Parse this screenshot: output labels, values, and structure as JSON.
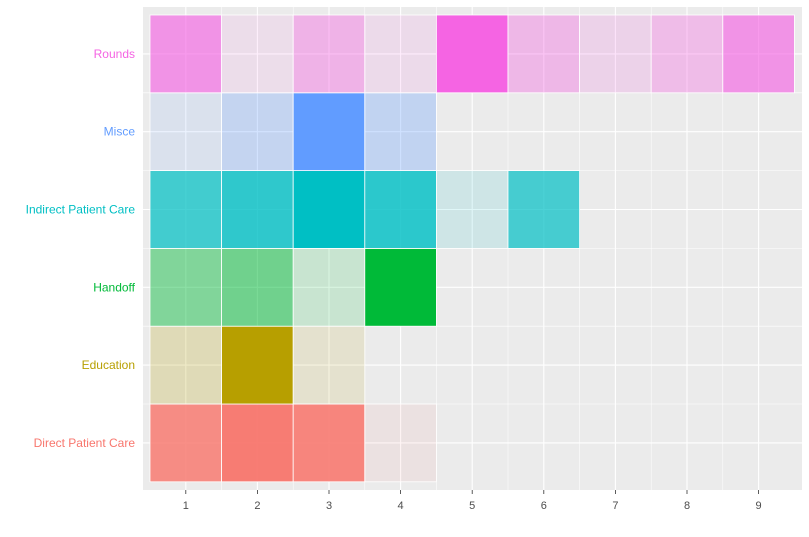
{
  "chart_data": {
    "type": "heatmap",
    "title": "",
    "xlabel": "",
    "ylabel": "",
    "x": [
      1,
      2,
      3,
      4,
      5,
      6,
      7,
      8,
      9
    ],
    "categories": [
      "Direct Patient Care",
      "Education",
      "Handoff",
      "Indirect Patient Care",
      "Misce",
      "Rounds"
    ],
    "category_colors": {
      "Direct Patient Care": "#F8766D",
      "Education": "#B79F00",
      "Handoff": "#00BA38",
      "Indirect Patient Care": "#00BFC4",
      "Misce": "#619CFF",
      "Rounds": "#F564E3"
    },
    "intensity_note": "opacity (0-1) of each tile; null = no tile",
    "series": [
      {
        "name": "Direct Patient Care",
        "values": [
          0.82,
          0.95,
          0.88,
          0.08,
          null,
          null,
          null,
          null,
          null
        ]
      },
      {
        "name": "Education",
        "values": [
          0.22,
          1.0,
          0.12,
          null,
          null,
          null,
          null,
          null,
          null
        ]
      },
      {
        "name": "Handoff",
        "values": [
          0.45,
          0.52,
          0.15,
          1.0,
          null,
          null,
          null,
          null,
          null
        ]
      },
      {
        "name": "Indirect Patient Care",
        "values": [
          0.72,
          0.8,
          1.0,
          0.82,
          0.12,
          0.7,
          null,
          null,
          null
        ]
      },
      {
        "name": "Misce",
        "values": [
          0.12,
          0.28,
          1.0,
          0.3,
          null,
          null,
          null,
          null,
          null
        ]
      },
      {
        "name": "Rounds",
        "values": [
          0.65,
          0.1,
          0.42,
          0.12,
          1.0,
          0.38,
          0.18,
          0.35,
          0.65
        ]
      }
    ],
    "grid": true,
    "legend": "none",
    "panel_background": "#EBEBEB"
  }
}
